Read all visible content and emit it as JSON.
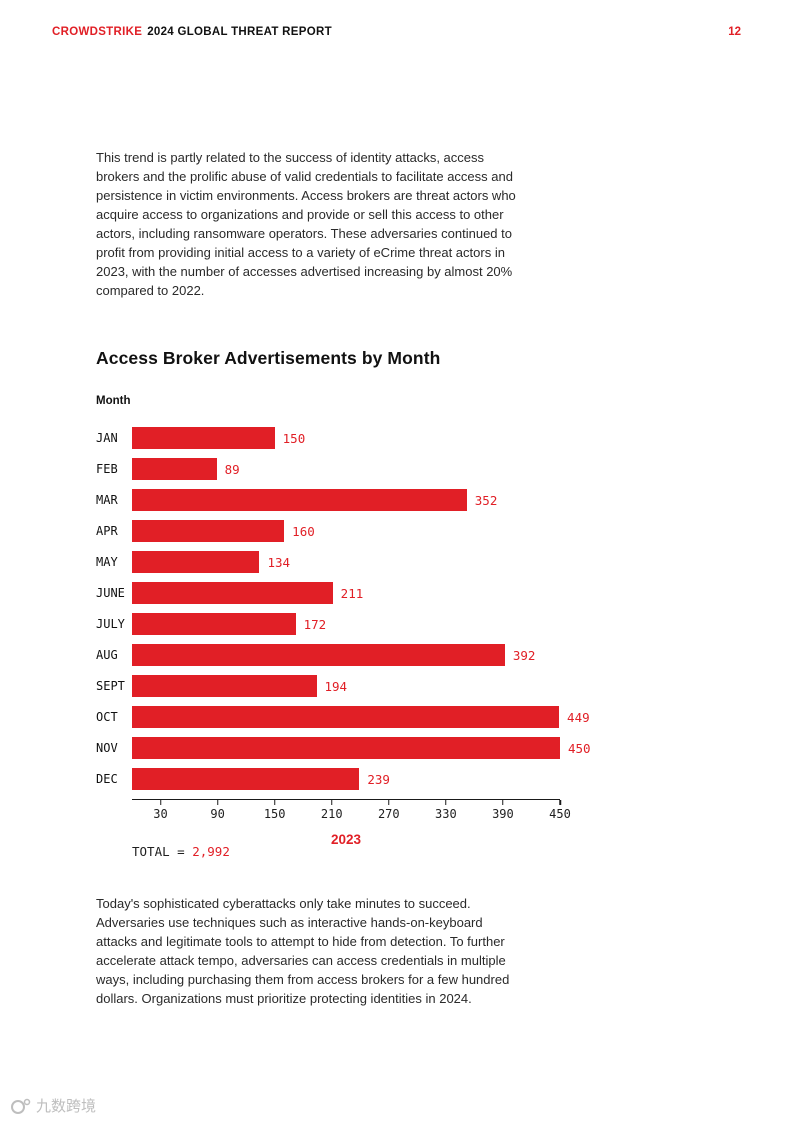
{
  "header": {
    "brand": "CROWDSTRIKE",
    "report_title": "2024 GLOBAL THREAT REPORT",
    "page_number": "12"
  },
  "body": {
    "intro_paragraph": "This trend is partly related to the success of identity attacks, access brokers and the prolific abuse of valid credentials to facilitate access and persistence in victim environments. Access brokers are threat actors who acquire access to organizations and provide or sell this access to other actors, including ransomware operators. These adversaries continued to profit from providing initial access to a variety of eCrime threat actors in 2023, with the number of accesses advertised increasing by almost 20% compared to 2022.",
    "section_title": "Access Broker Advertisements by Month",
    "closing_paragraph": "Today's sophisticated cyberattacks only take minutes to succeed. Adversaries use techniques such as interactive hands-on-keyboard attacks and legitimate tools to attempt to hide from detection. To further accelerate attack tempo, adversaries can access credentials in multiple ways, including purchasing them from access brokers for a few hundred dollars. Organizations must prioritize protecting identities in 2024."
  },
  "chart_data": {
    "type": "bar",
    "orientation": "horizontal",
    "title": "Access Broker Advertisements by Month",
    "axis_label": "Month",
    "categories": [
      "JAN",
      "FEB",
      "MAR",
      "APR",
      "MAY",
      "JUNE",
      "JULY",
      "AUG",
      "SEPT",
      "OCT",
      "NOV",
      "DEC"
    ],
    "values": [
      150,
      89,
      352,
      160,
      134,
      211,
      172,
      392,
      194,
      449,
      450,
      239
    ],
    "x_ticks": [
      30,
      90,
      150,
      210,
      270,
      330,
      390,
      450
    ],
    "xlim": [
      0,
      450
    ],
    "x_axis_title": "2023",
    "total_label": "TOTAL =",
    "total_value": "2,992",
    "bar_color": "#e11f26",
    "value_color": "#e11f26",
    "grid": false,
    "legend": false
  },
  "watermark": {
    "text": "九数跨境"
  },
  "colors": {
    "accent_red": "#e11f26",
    "text": "#1f1f1f"
  }
}
